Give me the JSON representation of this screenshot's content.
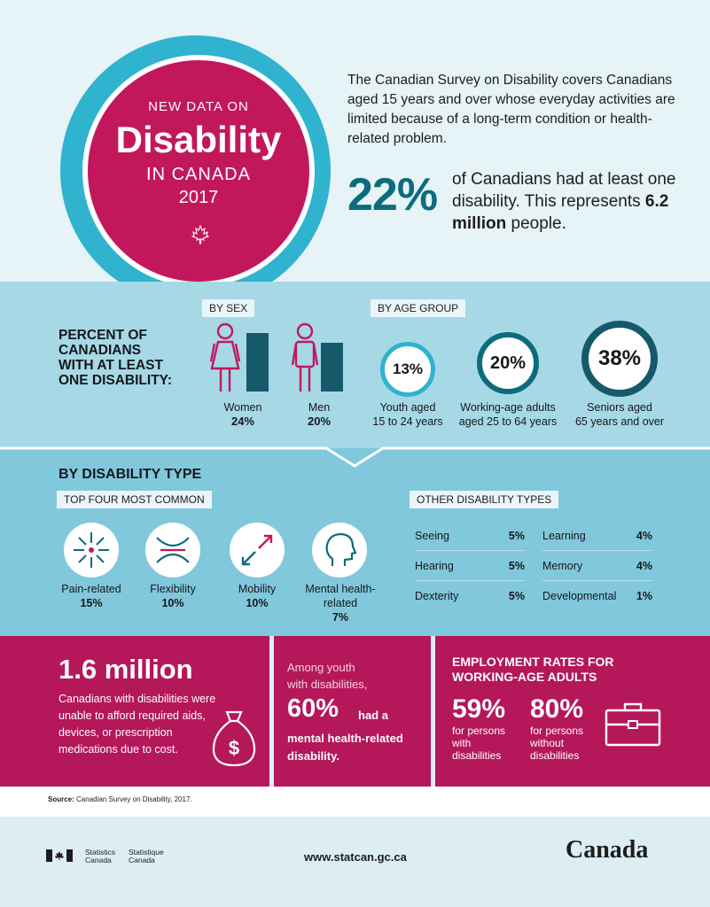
{
  "header": {
    "badge_line1": "NEW DATA ON",
    "badge_line2": "Disability",
    "badge_line3": "IN CANADA",
    "badge_line4": "2017",
    "intro": "The Canadian Survey on Disability covers Canadians aged 15 years and over whose everyday activities are limited because of a long-term condition or health-related problem.",
    "stat_value": "22%",
    "stat_text_1": "of Canadians had at least one disability. This represents",
    "stat_bold": "6.2 million",
    "stat_text_2": "people."
  },
  "prevalence": {
    "title_line1": "PERCENT OF",
    "title_line2": "CANADIANS",
    "title_line3": "WITH AT LEAST",
    "title_line4": "ONE DISABILITY:",
    "by_sex_label": "BY SEX",
    "by_age_label": "BY AGE GROUP",
    "sex": [
      {
        "label": "Women",
        "value_text": "24%",
        "value": 24
      },
      {
        "label": "Men",
        "value_text": "20%",
        "value": 20
      }
    ],
    "age": [
      {
        "value": "13%",
        "line1": "Youth aged",
        "line2": "15 to 24 years"
      },
      {
        "value": "20%",
        "line1": "Working-age adults",
        "line2": "aged 25 to 64 years"
      },
      {
        "value": "38%",
        "line1": "Seniors aged",
        "line2": "65 years and over"
      }
    ]
  },
  "types": {
    "title": "BY DISABILITY TYPE",
    "top_label": "TOP FOUR MOST COMMON",
    "other_label": "OTHER DISABILITY TYPES",
    "top": [
      {
        "label": "Pain-related",
        "value": "15%"
      },
      {
        "label": "Flexibility",
        "value": "10%"
      },
      {
        "label": "Mobility",
        "value": "10%"
      },
      {
        "label": "Mental health-",
        "label2": "related",
        "value": "7%"
      }
    ],
    "other_left": [
      {
        "label": "Seeing",
        "value": "5%"
      },
      {
        "label": "Hearing",
        "value": "5%"
      },
      {
        "label": "Dexterity",
        "value": "5%"
      }
    ],
    "other_right": [
      {
        "label": "Learning",
        "value": "4%"
      },
      {
        "label": "Memory",
        "value": "4%"
      },
      {
        "label": "Developmental",
        "value": "1%"
      }
    ]
  },
  "bottom": {
    "million": "1.6 million",
    "million_text": "Canadians with disabilities were unable to afford required aids, devices, or prescription medications due to cost.",
    "youth_intro_1": "Among youth",
    "youth_intro_2": "with disabilities,",
    "youth_value": "60%",
    "youth_had": "had a",
    "youth_text_1": "mental health-related",
    "youth_text_2": "disability.",
    "emp_title_1": "EMPLOYMENT RATES FOR",
    "emp_title_2": "WORKING-AGE ADULTS",
    "emp_with_value": "59%",
    "emp_with_1": "for persons",
    "emp_with_2": "with",
    "emp_with_3": "disabilities",
    "emp_without_value": "80%",
    "emp_without_1": "for persons",
    "emp_without_2": "without",
    "emp_without_3": "disabilities"
  },
  "source": {
    "label": "Source:",
    "text": "Canadian Survey on Disability, 2017."
  },
  "footer": {
    "sc_en_1": "Statistics",
    "sc_en_2": "Canada",
    "sc_fr_1": "Statistique",
    "sc_fr_2": "Canada",
    "url": "www.statcan.gc.ca",
    "wordmark": "Canada"
  },
  "colors": {
    "magenta": "#c2185b",
    "teal": "#2fb3cf",
    "dark_teal": "#0c6c7e",
    "light_blue": "#a6d8e6",
    "mid_blue": "#81c8dd",
    "bar": "#16596a"
  }
}
